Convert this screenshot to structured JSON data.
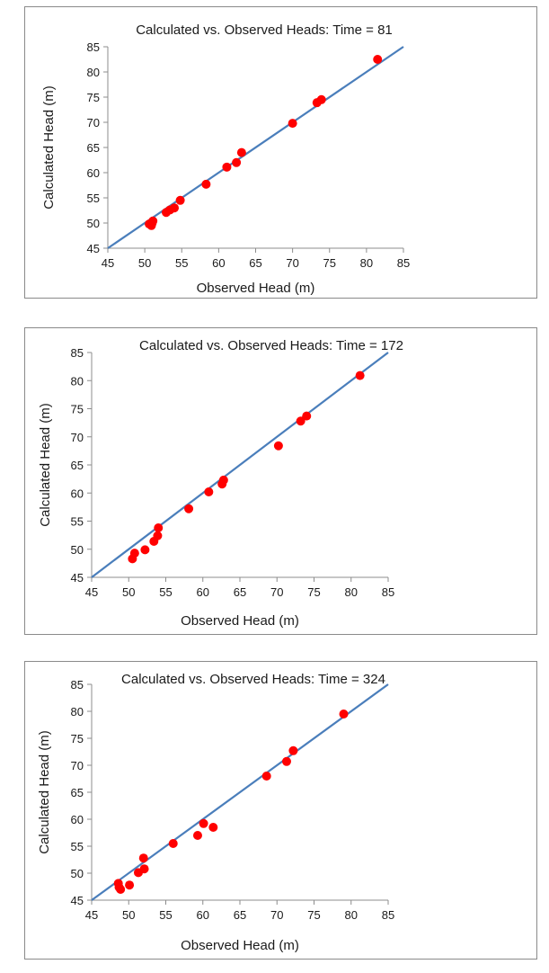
{
  "chart_data": [
    {
      "type": "scatter",
      "title": "Calculated vs. Observed Heads: Time = 81",
      "xlabel": "Observed Head (m)",
      "ylabel": "Calculated Head (m)",
      "xlim": [
        45,
        85
      ],
      "ylim": [
        45,
        85
      ],
      "xticks": [
        45,
        50,
        55,
        60,
        65,
        70,
        75,
        80,
        85
      ],
      "yticks": [
        45,
        50,
        55,
        60,
        65,
        70,
        75,
        80,
        85
      ],
      "reference_line": {
        "from": [
          45,
          45
        ],
        "to": [
          85,
          85
        ],
        "color": "#4a7ebb"
      },
      "marker_color": "#ff0000",
      "points": [
        {
          "x": 50.6,
          "y": 49.8
        },
        {
          "x": 50.9,
          "y": 49.5
        },
        {
          "x": 51.0,
          "y": 50.0
        },
        {
          "x": 51.1,
          "y": 50.4
        },
        {
          "x": 52.9,
          "y": 52.1
        },
        {
          "x": 53.4,
          "y": 52.6
        },
        {
          "x": 54.0,
          "y": 53.0
        },
        {
          "x": 54.8,
          "y": 54.5
        },
        {
          "x": 58.3,
          "y": 57.7
        },
        {
          "x": 61.1,
          "y": 61.1
        },
        {
          "x": 62.4,
          "y": 62.0
        },
        {
          "x": 63.1,
          "y": 64.0
        },
        {
          "x": 70.0,
          "y": 69.8
        },
        {
          "x": 73.3,
          "y": 73.9
        },
        {
          "x": 73.9,
          "y": 74.5
        },
        {
          "x": 81.5,
          "y": 82.5
        }
      ]
    },
    {
      "type": "scatter",
      "title": "Calculated vs. Observed Heads: Time = 172",
      "xlabel": "Observed Head (m)",
      "ylabel": "Calculated Head (m)",
      "xlim": [
        45,
        85
      ],
      "ylim": [
        45,
        85
      ],
      "xticks": [
        45,
        50,
        55,
        60,
        65,
        70,
        75,
        80,
        85
      ],
      "yticks": [
        45,
        50,
        55,
        60,
        65,
        70,
        75,
        80,
        85
      ],
      "reference_line": {
        "from": [
          45,
          45
        ],
        "to": [
          85,
          85
        ],
        "color": "#4a7ebb"
      },
      "marker_color": "#ff0000",
      "points": [
        {
          "x": 50.5,
          "y": 48.3
        },
        {
          "x": 50.8,
          "y": 49.3
        },
        {
          "x": 52.2,
          "y": 49.9
        },
        {
          "x": 53.4,
          "y": 51.4
        },
        {
          "x": 53.9,
          "y": 52.4
        },
        {
          "x": 54.0,
          "y": 53.8
        },
        {
          "x": 58.1,
          "y": 57.2
        },
        {
          "x": 60.8,
          "y": 60.2
        },
        {
          "x": 62.6,
          "y": 61.6
        },
        {
          "x": 62.8,
          "y": 62.3
        },
        {
          "x": 70.2,
          "y": 68.4
        },
        {
          "x": 73.2,
          "y": 72.8
        },
        {
          "x": 74.0,
          "y": 73.7
        },
        {
          "x": 81.2,
          "y": 80.9
        }
      ]
    },
    {
      "type": "scatter",
      "title": "Calculated vs. Observed Heads: Time = 324",
      "xlabel": "Observed Head (m)",
      "ylabel": "Calculated Head (m)",
      "xlim": [
        45,
        85
      ],
      "ylim": [
        45,
        85
      ],
      "xticks": [
        45,
        50,
        55,
        60,
        65,
        70,
        75,
        80,
        85
      ],
      "yticks": [
        45,
        50,
        55,
        60,
        65,
        70,
        75,
        80,
        85
      ],
      "reference_line": {
        "from": [
          45,
          45
        ],
        "to": [
          85,
          85
        ],
        "color": "#4a7ebb"
      },
      "marker_color": "#ff0000",
      "points": [
        {
          "x": 48.6,
          "y": 48.1
        },
        {
          "x": 48.7,
          "y": 47.4
        },
        {
          "x": 48.9,
          "y": 47.0
        },
        {
          "x": 50.1,
          "y": 47.8
        },
        {
          "x": 51.3,
          "y": 50.1
        },
        {
          "x": 52.0,
          "y": 52.8
        },
        {
          "x": 52.1,
          "y": 50.8
        },
        {
          "x": 56.0,
          "y": 55.5
        },
        {
          "x": 59.3,
          "y": 57.0
        },
        {
          "x": 60.1,
          "y": 59.2
        },
        {
          "x": 61.4,
          "y": 58.5
        },
        {
          "x": 68.6,
          "y": 68.0
        },
        {
          "x": 71.3,
          "y": 70.7
        },
        {
          "x": 72.2,
          "y": 72.7
        },
        {
          "x": 79.0,
          "y": 79.5
        }
      ]
    }
  ]
}
